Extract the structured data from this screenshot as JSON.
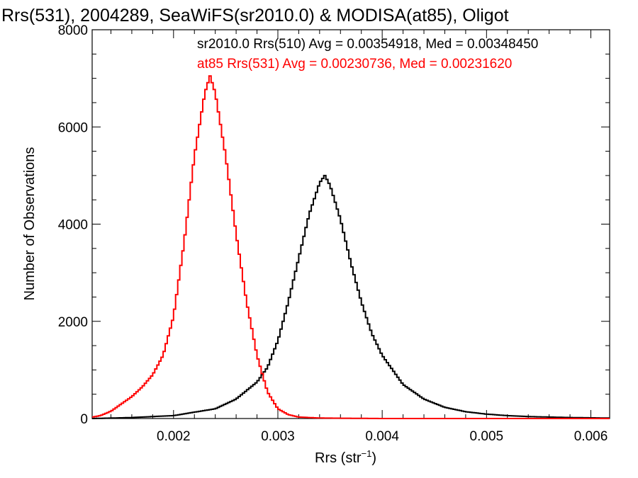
{
  "chart_data": {
    "type": "line",
    "title": "Rrs(531), 2004289, SeaWiFS(sr2010.0) & MODISA(at85), Oligot",
    "xlabel_main": "Rrs (str",
    "xlabel_sup": "−1",
    "xlabel_end": ")",
    "ylabel": "Number of Observations",
    "xlim": [
      0.00122,
      0.00618
    ],
    "ylim": [
      0,
      8000
    ],
    "x_ticks": [
      0.002,
      0.003,
      0.004,
      0.005,
      0.006
    ],
    "x_tick_labels": [
      "0.002",
      "0.003",
      "0.004",
      "0.005",
      "0.006"
    ],
    "y_ticks": [
      0,
      2000,
      4000,
      6000,
      8000
    ],
    "y_tick_labels": [
      "0",
      "2000",
      "4000",
      "6000",
      "8000"
    ],
    "grid": false,
    "legend_position": "top",
    "series": [
      {
        "name": "sr2010.0 Rrs(510) Avg = 0.00354918, Med = 0.00348450",
        "color": "#000000",
        "x": [
          0.00122,
          0.0016,
          0.002,
          0.0024,
          0.0026,
          0.0028,
          0.0029,
          0.003,
          0.0031,
          0.0032,
          0.0033,
          0.0034,
          0.00345,
          0.0035,
          0.0036,
          0.0037,
          0.0038,
          0.0039,
          0.004,
          0.0042,
          0.0044,
          0.0046,
          0.0048,
          0.005,
          0.0052,
          0.0054,
          0.0056,
          0.0058,
          0.00618
        ],
        "values": [
          0,
          20,
          60,
          200,
          400,
          750,
          1050,
          1600,
          2400,
          3300,
          4200,
          4850,
          5000,
          4800,
          4100,
          3200,
          2400,
          1750,
          1300,
          700,
          400,
          230,
          140,
          90,
          60,
          40,
          30,
          20,
          10
        ]
      },
      {
        "name": "at85 Rrs(531) Avg = 0.00230736, Med = 0.00231620",
        "color": "#ff0000",
        "x": [
          0.00122,
          0.0013,
          0.0014,
          0.0015,
          0.0016,
          0.0017,
          0.0018,
          0.0019,
          0.002,
          0.0021,
          0.0022,
          0.0023,
          0.00235,
          0.0024,
          0.0025,
          0.0026,
          0.0027,
          0.0028,
          0.0029,
          0.003,
          0.0031,
          0.0032,
          0.0034,
          0.004,
          0.00618
        ],
        "values": [
          30,
          60,
          150,
          300,
          450,
          650,
          900,
          1300,
          2100,
          3600,
          5400,
          6700,
          7050,
          6700,
          5400,
          3800,
          2400,
          1300,
          550,
          200,
          80,
          30,
          10,
          0,
          0
        ]
      }
    ]
  }
}
